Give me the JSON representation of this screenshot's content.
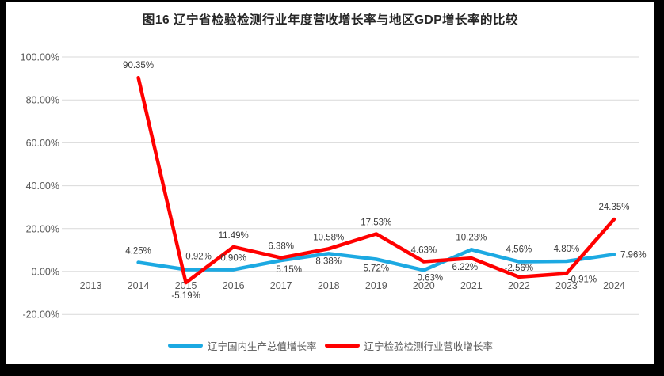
{
  "window": {
    "background": "#000000",
    "canvas": "#FFFFFF"
  },
  "chart_data": {
    "type": "line",
    "title": "图16 辽宁省检验检测行业年度营收增长率与地区GDP增长率的比较",
    "categories": [
      "2013",
      "2014",
      "2015",
      "2016",
      "2017",
      "2018",
      "2019",
      "2020",
      "2021",
      "2022",
      "2023",
      "2024"
    ],
    "series": [
      {
        "name": "辽宁国内生产总值增长率",
        "color": "#1CA9E2",
        "values": [
          null,
          4.25,
          0.92,
          0.9,
          5.15,
          8.38,
          5.72,
          0.63,
          10.23,
          4.56,
          4.8,
          7.96
        ]
      },
      {
        "name": "辽宁检验检测行业营收增长率",
        "color": "#FF0000",
        "values": [
          null,
          90.35,
          -5.19,
          11.49,
          6.38,
          10.58,
          17.53,
          4.63,
          6.22,
          -2.56,
          -0.91,
          24.35
        ]
      }
    ],
    "ylim": [
      -20,
      100
    ],
    "ytick_step": 20,
    "ytick_suffix": "%",
    "value_decimals": 2,
    "grid": "horizontal",
    "legend_position": "bottom",
    "colors": {
      "grid": "#D9D9D9",
      "zero_line": "#C8C8C8",
      "axis_text": "#595959",
      "data_label": "#3B3B3B",
      "title_text": "#262626"
    }
  }
}
